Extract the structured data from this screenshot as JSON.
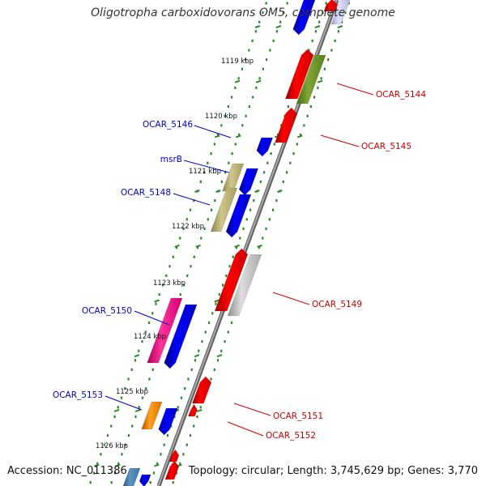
{
  "title": "Oligotropha carboxidovorans OM5, complete genome",
  "accession": "Accession: NC_011386",
  "summary": "Topology: circular; Length: 3,745,629 bp; Genes: 3,770",
  "colors": {
    "backbone": "#808080",
    "tick_dots": "#2a8a2a",
    "forward_label": "#cc0000",
    "reverse_label": "#0000cc"
  },
  "kbp_ticks": [
    "1119 kbp",
    "1120 kbp",
    "1121 kbp",
    "1122 kbp",
    "1123 kbp",
    "1124 kbp",
    "1125 kbp",
    "1126 kbp"
  ],
  "left_labels": [
    "OCAR_5146",
    "msrB",
    "OCAR_5148",
    "OCAR_5150",
    "OCAR_5153"
  ],
  "right_labels": [
    "OCAR_5144",
    "OCAR_5145",
    "OCAR_5149",
    "OCAR_5151",
    "OCAR_5152"
  ]
}
